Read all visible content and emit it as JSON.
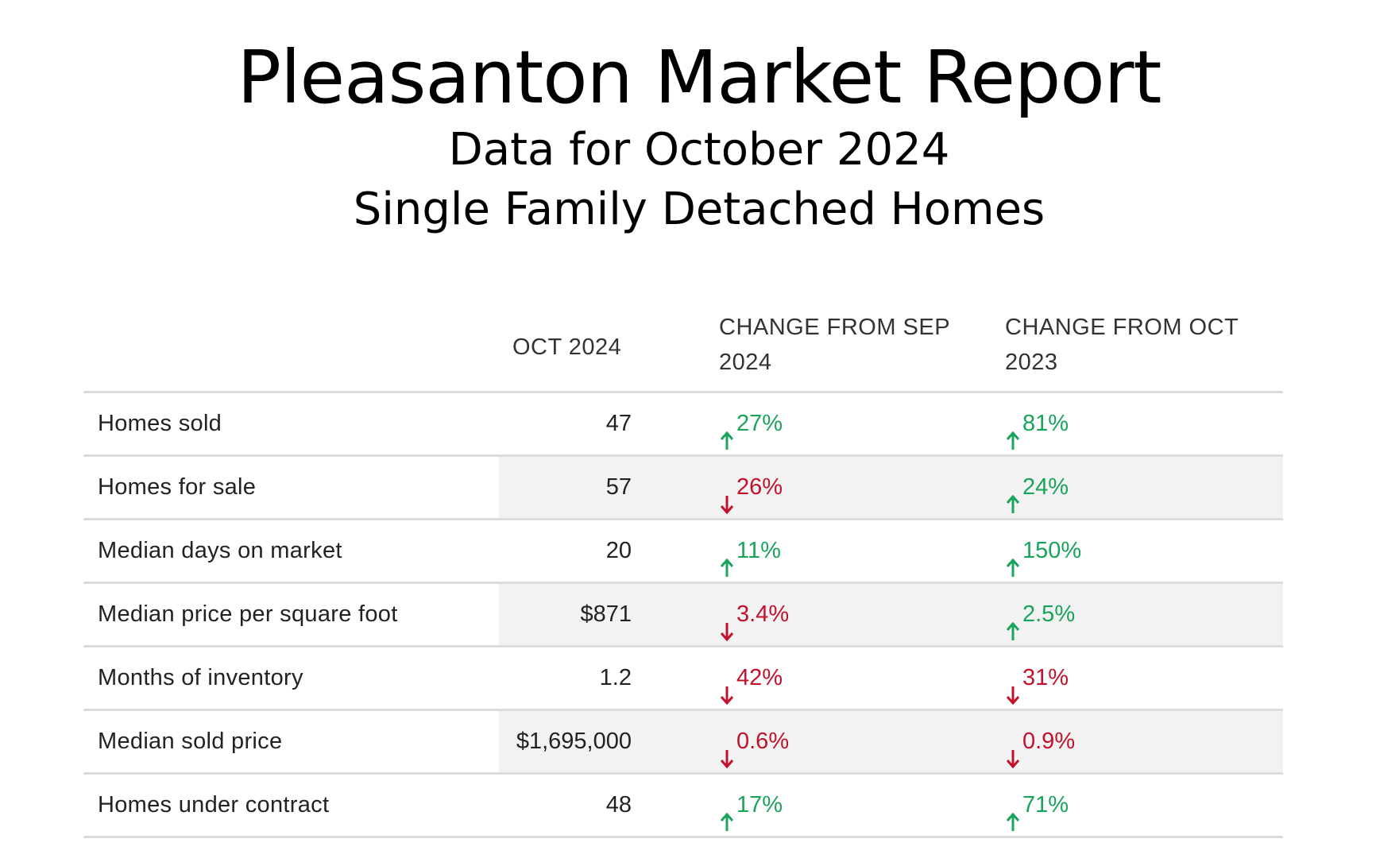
{
  "report": {
    "title": "Pleasanton Market Report",
    "subtitle_line1": "Data for October 2024",
    "subtitle_line2": "Single Family Detached Homes"
  },
  "table": {
    "headers": {
      "metric": "",
      "value": "OCT 2024",
      "change_prev_month": "CHANGE FROM SEP 2024",
      "change_prev_year": "CHANGE FROM OCT 2023"
    },
    "rows": [
      {
        "metric": "Homes sold",
        "value": "47",
        "change_prev_month": {
          "text": "27%",
          "direction": "up"
        },
        "change_prev_year": {
          "text": "81%",
          "direction": "up"
        }
      },
      {
        "metric": "Homes for sale",
        "value": "57",
        "change_prev_month": {
          "text": "26%",
          "direction": "down"
        },
        "change_prev_year": {
          "text": "24%",
          "direction": "up"
        }
      },
      {
        "metric": "Median days on market",
        "value": "20",
        "change_prev_month": {
          "text": "11%",
          "direction": "up"
        },
        "change_prev_year": {
          "text": "150%",
          "direction": "up"
        }
      },
      {
        "metric": "Median price per square foot",
        "value": "$871",
        "change_prev_month": {
          "text": "3.4%",
          "direction": "down"
        },
        "change_prev_year": {
          "text": "2.5%",
          "direction": "up"
        }
      },
      {
        "metric": "Months of inventory",
        "value": "1.2",
        "change_prev_month": {
          "text": "42%",
          "direction": "down"
        },
        "change_prev_year": {
          "text": "31%",
          "direction": "down"
        }
      },
      {
        "metric": "Median sold price",
        "value": "$1,695,000",
        "change_prev_month": {
          "text": "0.6%",
          "direction": "down"
        },
        "change_prev_year": {
          "text": "0.9%",
          "direction": "down"
        }
      },
      {
        "metric": "Homes under contract",
        "value": "48",
        "change_prev_month": {
          "text": "17%",
          "direction": "up"
        },
        "change_prev_year": {
          "text": "71%",
          "direction": "up"
        }
      }
    ]
  },
  "colors": {
    "up": "#1aa35a",
    "down": "#c0132b",
    "row_shade": "#f2f2f2",
    "divider": "#dcdcdc"
  },
  "icons": {
    "up": "arrow-up-icon",
    "down": "arrow-down-icon"
  }
}
